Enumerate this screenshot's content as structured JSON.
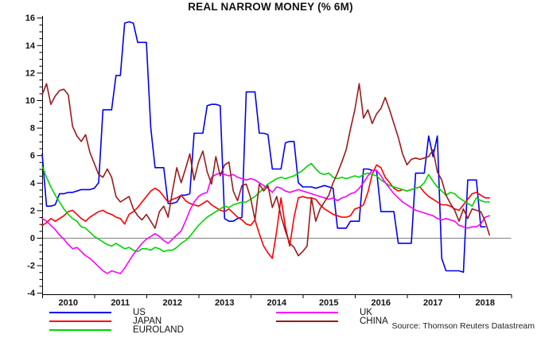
{
  "title": "REAL NARROW MONEY (% 6M)",
  "source_note": "Source: Thomson Reuters Datastream",
  "chart_data": {
    "type": "line",
    "title": "REAL NARROW MONEY (% 6M)",
    "x_unit": "month",
    "x_start": "2010-01",
    "x_end": "2018-08",
    "x_tick_years": [
      2010,
      2011,
      2012,
      2013,
      2014,
      2015,
      2016,
      2017,
      2018
    ],
    "ylim": [
      -4.1,
      16.1
    ],
    "y_major_ticks": [
      16,
      14,
      12,
      10,
      8,
      6,
      4,
      2,
      0,
      -2,
      -4
    ],
    "y_minor_step": 0.5,
    "grid": "zero-line-only",
    "zero_line_color": "#808080",
    "axis_color": "#000000",
    "legend_position": "bottom",
    "series": [
      {
        "name": "US",
        "color": "#0000f0",
        "values": [
          6.1,
          2.3,
          2.3,
          2.4,
          3.2,
          3.2,
          3.3,
          3.3,
          3.4,
          3.5,
          3.5,
          3.5,
          3.6,
          4.0,
          9.3,
          9.3,
          9.3,
          11.8,
          11.8,
          15.6,
          15.7,
          15.6,
          14.2,
          14.2,
          14.2,
          8.0,
          5.1,
          5.1,
          5.1,
          2.5,
          2.5,
          2.6,
          3.1,
          3.1,
          3.2,
          7.6,
          7.6,
          7.6,
          9.6,
          9.7,
          9.7,
          9.6,
          1.4,
          1.2,
          1.2,
          1.4,
          1.5,
          10.6,
          10.6,
          10.6,
          7.6,
          7.6,
          7.5,
          5.0,
          5.0,
          5.0,
          6.9,
          7.0,
          7.0,
          4.0,
          3.7,
          3.7,
          3.7,
          3.6,
          3.7,
          3.8,
          3.7,
          3.6,
          0.7,
          0.7,
          0.7,
          1.2,
          1.2,
          1.2,
          5.0,
          5.0,
          4.9,
          4.9,
          1.9,
          1.9,
          1.9,
          1.9,
          -0.4,
          -0.4,
          -0.4,
          -0.4,
          4.7,
          4.7,
          4.7,
          7.4,
          5.9,
          7.4,
          -1.5,
          -2.4,
          -2.4,
          -2.4,
          -2.4,
          -2.5,
          4.2,
          4.2,
          4.2,
          0.8,
          0.8,
          null
        ]
      },
      {
        "name": "JAPAN",
        "color": "#ff0000",
        "values": [
          0.9,
          1.1,
          1.4,
          1.2,
          1.4,
          1.6,
          1.9,
          2.0,
          1.7,
          1.4,
          1.2,
          1.5,
          1.7,
          1.9,
          2.0,
          1.8,
          1.7,
          1.5,
          1.4,
          1.0,
          1.7,
          1.9,
          2.2,
          2.6,
          3.0,
          3.4,
          3.6,
          3.4,
          3.0,
          2.6,
          2.8,
          2.9,
          3.1,
          2.7,
          2.5,
          2.4,
          2.3,
          2.5,
          2.7,
          2.4,
          2.2,
          2.0,
          1.9,
          2.1,
          1.8,
          1.5,
          1.3,
          1.0,
          0.9,
          1.3,
          0.3,
          -0.6,
          -1.1,
          -1.5,
          0.5,
          2.9,
          0.8,
          -0.6,
          1.5,
          2.9,
          3.0,
          2.9,
          2.9,
          2.8,
          2.4,
          2.1,
          1.9,
          1.7,
          1.6,
          1.5,
          1.5,
          1.6,
          2.1,
          2.2,
          2.4,
          3.3,
          4.6,
          5.3,
          5.1,
          4.4,
          4.0,
          3.6,
          3.4,
          3.5,
          3.4,
          3.5,
          3.6,
          3.7,
          3.3,
          3.0,
          2.8,
          2.6,
          2.4,
          2.4,
          2.3,
          2.1,
          2.0,
          2.4,
          2.8,
          3.2,
          3.3,
          3.1,
          2.9,
          2.9
        ]
      },
      {
        "name": "EUROLAND",
        "color": "#00d400",
        "values": [
          5.2,
          4.4,
          3.7,
          3.1,
          2.6,
          2.1,
          1.7,
          1.4,
          1.2,
          0.8,
          0.7,
          0.4,
          0.1,
          -0.1,
          -0.3,
          -0.5,
          -0.6,
          -0.4,
          -0.6,
          -0.8,
          -0.7,
          -0.9,
          -1.0,
          -0.8,
          -0.8,
          -0.9,
          -0.7,
          -0.8,
          -1.0,
          -0.9,
          -0.9,
          -0.7,
          -0.4,
          -0.2,
          0.1,
          0.5,
          0.9,
          1.2,
          1.5,
          1.7,
          1.9,
          2.1,
          2.3,
          2.2,
          2.4,
          2.5,
          2.6,
          2.6,
          2.8,
          3.0,
          3.3,
          3.6,
          3.9,
          4.1,
          4.3,
          4.4,
          4.3,
          4.4,
          4.5,
          4.7,
          4.9,
          5.2,
          5.4,
          5.0,
          4.7,
          4.6,
          4.7,
          4.4,
          4.3,
          4.4,
          4.3,
          4.4,
          4.5,
          4.4,
          4.6,
          4.7,
          4.6,
          4.5,
          4.2,
          4.0,
          3.8,
          3.7,
          3.6,
          3.5,
          3.4,
          3.5,
          3.6,
          3.7,
          4.0,
          4.6,
          4.1,
          3.7,
          3.4,
          3.1,
          3.3,
          3.2,
          2.9,
          2.7,
          2.5,
          2.3,
          2.9,
          2.7,
          2.6,
          2.6
        ]
      },
      {
        "name": "UK",
        "color": "#ff00ff",
        "values": [
          1.4,
          1.2,
          0.9,
          0.6,
          0.2,
          -0.1,
          -0.5,
          -0.8,
          -0.7,
          -1.0,
          -1.3,
          -1.5,
          -1.8,
          -2.1,
          -2.4,
          -2.6,
          -2.4,
          -2.5,
          -2.6,
          -2.2,
          -1.7,
          -1.2,
          -0.8,
          -0.4,
          -0.1,
          0.1,
          0.3,
          0.1,
          -0.2,
          -0.4,
          -0.1,
          0.2,
          0.5,
          1.2,
          2.0,
          2.6,
          3.0,
          3.2,
          3.3,
          4.4,
          4.6,
          4.7,
          4.6,
          4.5,
          4.6,
          4.4,
          4.3,
          4.2,
          4.3,
          4.2,
          4.0,
          3.8,
          3.6,
          3.3,
          3.7,
          3.6,
          3.4,
          3.3,
          3.4,
          3.5,
          3.4,
          3.3,
          3.2,
          3.1,
          3.0,
          2.9,
          2.8,
          2.9,
          2.7,
          2.9,
          3.0,
          3.2,
          3.3,
          3.6,
          4.0,
          4.5,
          4.9,
          4.9,
          4.5,
          4.0,
          3.6,
          3.2,
          2.9,
          2.6,
          2.4,
          2.2,
          2.0,
          1.9,
          1.8,
          1.7,
          1.6,
          1.4,
          1.3,
          1.4,
          1.3,
          1.2,
          0.9,
          0.8,
          0.7,
          0.8,
          0.8,
          1.0,
          1.5,
          1.6
        ]
      },
      {
        "name": "CHINA",
        "color": "#9b1b1b",
        "values": [
          10.4,
          11.2,
          9.7,
          10.3,
          10.7,
          10.8,
          10.4,
          8.1,
          7.4,
          7.0,
          7.5,
          6.2,
          5.4,
          4.6,
          4.4,
          5.0,
          4.4,
          3.0,
          2.6,
          2.8,
          3.0,
          2.1,
          1.6,
          1.3,
          1.7,
          1.2,
          0.7,
          1.9,
          2.3,
          1.5,
          3.4,
          5.1,
          4.0,
          5.0,
          6.1,
          4.2,
          5.5,
          6.3,
          4.8,
          3.9,
          5.9,
          4.5,
          5.3,
          5.5,
          3.4,
          2.7,
          3.8,
          3.9,
          2.9,
          1.3,
          3.9,
          3.4,
          3.8,
          2.2,
          3.0,
          1.6,
          0.5,
          -0.4,
          -0.7,
          -1.3,
          -1.0,
          -0.6,
          2.9,
          1.2,
          2.1,
          2.6,
          3.1,
          4.0,
          4.7,
          5.5,
          6.4,
          7.9,
          9.3,
          11.2,
          8.7,
          9.3,
          8.3,
          9.0,
          9.4,
          10.2,
          9.3,
          8.3,
          7.3,
          6.1,
          5.3,
          5.7,
          5.8,
          5.7,
          5.8,
          5.9,
          6.4,
          4.8,
          4.2,
          3.1,
          2.5,
          2.0,
          1.2,
          2.1,
          1.4,
          2.1,
          2.0,
          1.9,
          1.2,
          0.2
        ]
      }
    ]
  }
}
